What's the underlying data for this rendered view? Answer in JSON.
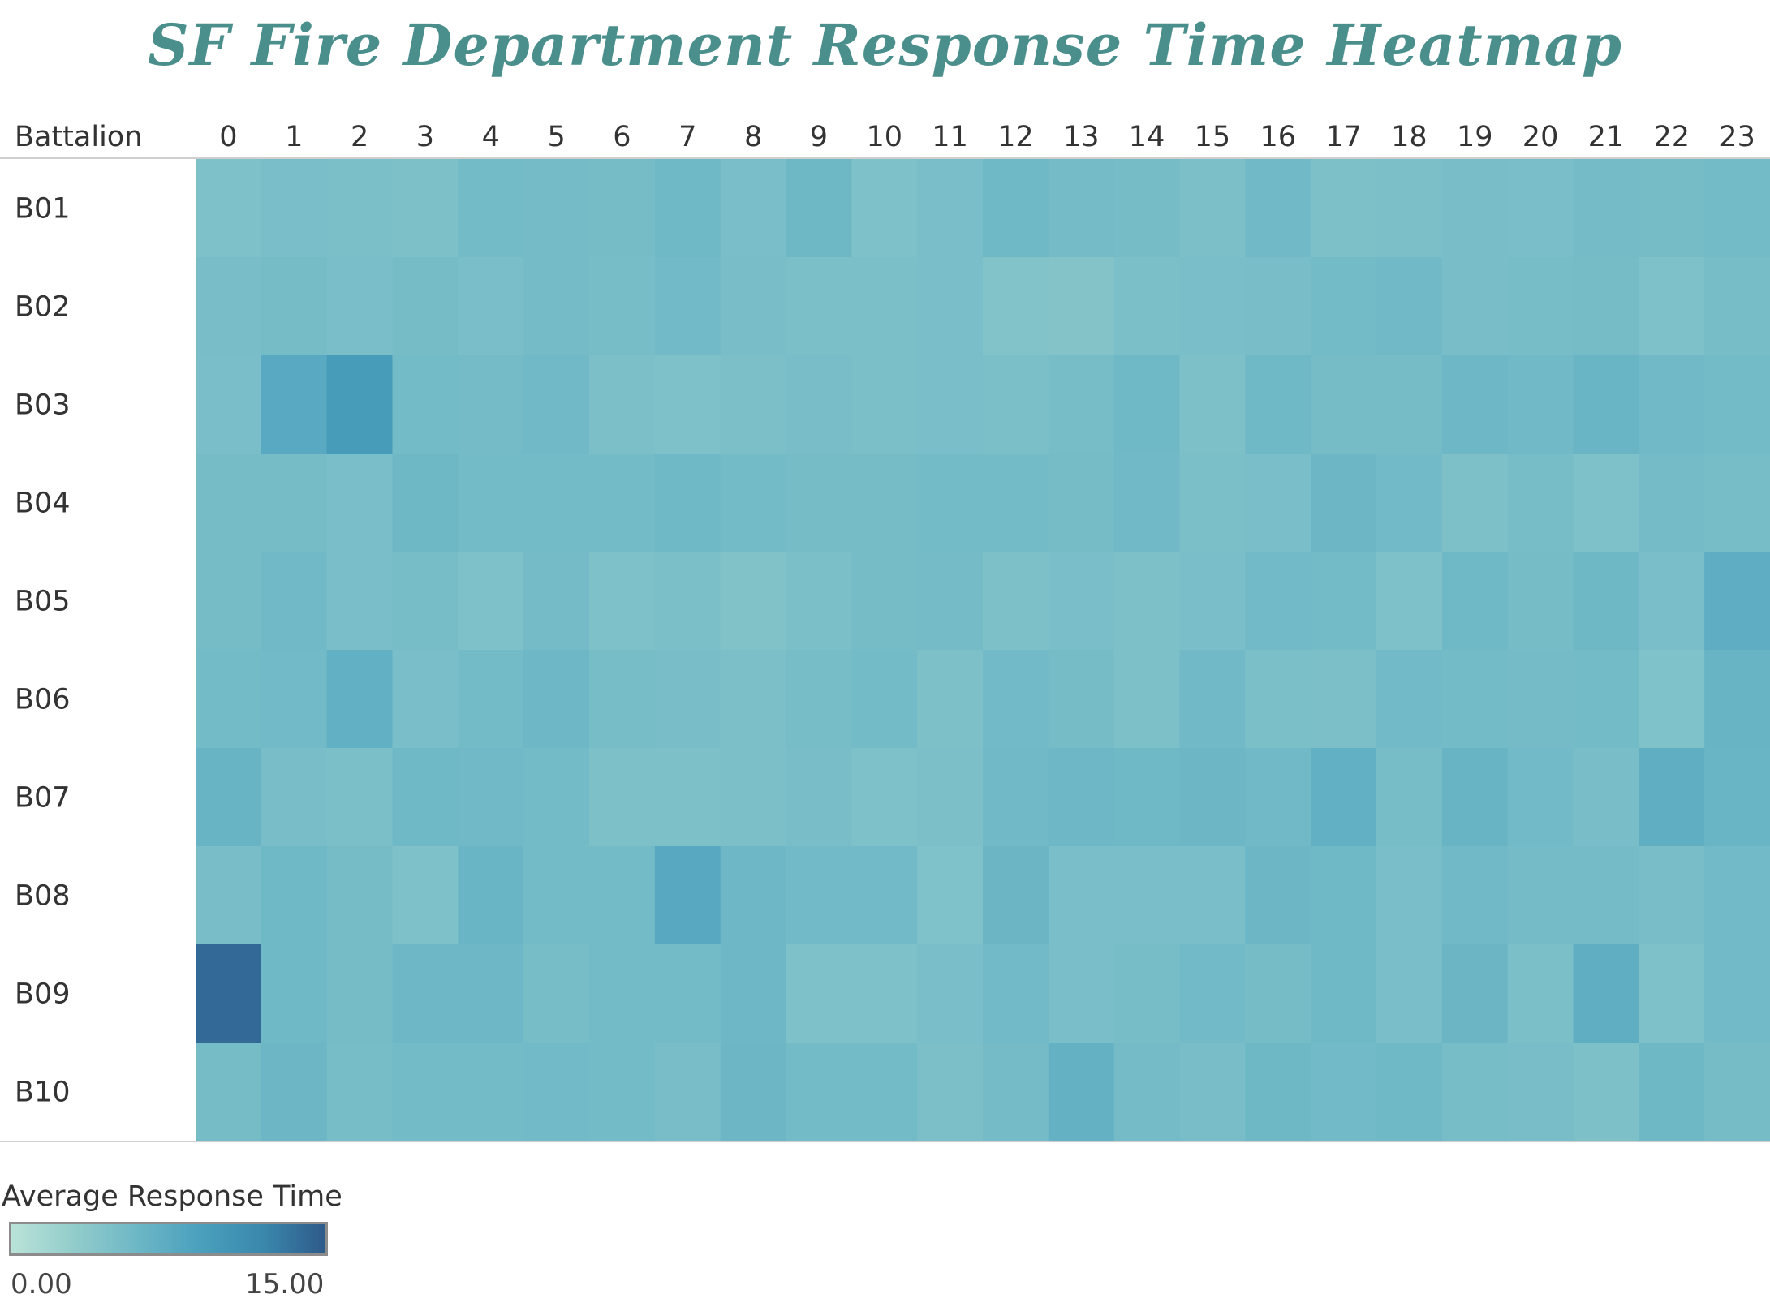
{
  "chart_data": {
    "type": "heatmap",
    "title": "SF Fire Department Response Time Heatmap",
    "row_header": "Battalion",
    "rows": [
      "B01",
      "B02",
      "B03",
      "B04",
      "B05",
      "B06",
      "B07",
      "B08",
      "B09",
      "B10"
    ],
    "columns": [
      "0",
      "1",
      "2",
      "3",
      "4",
      "5",
      "6",
      "7",
      "8",
      "9",
      "10",
      "11",
      "12",
      "13",
      "14",
      "15",
      "16",
      "17",
      "18",
      "19",
      "20",
      "21",
      "22",
      "23"
    ],
    "values": [
      [
        4.6,
        5.0,
        4.9,
        4.7,
        5.5,
        5.4,
        5.3,
        5.8,
        5.0,
        5.9,
        4.6,
        5.0,
        5.8,
        5.4,
        5.3,
        4.8,
        5.7,
        4.7,
        4.8,
        5.1,
        5.0,
        5.4,
        5.3,
        5.5
      ],
      [
        5.1,
        5.3,
        5.0,
        5.3,
        5.0,
        5.4,
        5.2,
        5.6,
        5.1,
        4.9,
        4.9,
        5.0,
        4.3,
        4.1,
        4.9,
        5.0,
        5.1,
        5.5,
        5.7,
        5.1,
        5.2,
        5.3,
        4.6,
        5.2
      ],
      [
        5.0,
        7.8,
        9.5,
        5.5,
        5.4,
        5.7,
        4.8,
        4.6,
        4.8,
        5.1,
        4.9,
        5.0,
        4.9,
        5.2,
        5.8,
        4.7,
        5.8,
        5.3,
        5.3,
        6.0,
        5.7,
        6.3,
        5.7,
        5.5
      ],
      [
        5.3,
        5.3,
        5.0,
        5.9,
        5.5,
        5.5,
        5.5,
        5.8,
        5.5,
        5.3,
        5.3,
        5.5,
        5.5,
        5.3,
        5.7,
        4.9,
        5.0,
        6.1,
        5.6,
        4.7,
        5.2,
        4.6,
        5.4,
        5.2
      ],
      [
        5.3,
        5.7,
        5.0,
        5.2,
        4.6,
        5.4,
        4.6,
        4.9,
        4.4,
        4.9,
        5.3,
        5.4,
        4.7,
        5.0,
        4.7,
        5.0,
        5.6,
        5.5,
        4.6,
        5.8,
        5.3,
        5.9,
        5.0,
        7.3
      ],
      [
        5.5,
        5.6,
        6.9,
        5.0,
        5.5,
        6.0,
        5.2,
        5.1,
        4.8,
        5.2,
        5.5,
        4.7,
        5.6,
        5.3,
        4.7,
        5.7,
        4.9,
        4.8,
        5.6,
        5.5,
        5.4,
        5.5,
        4.5,
        6.4
      ],
      [
        6.4,
        5.1,
        4.9,
        5.8,
        5.7,
        5.5,
        4.7,
        4.7,
        4.8,
        5.1,
        4.6,
        4.8,
        5.7,
        6.0,
        5.8,
        6.1,
        5.7,
        6.9,
        5.2,
        6.4,
        5.6,
        5.1,
        7.2,
        6.3
      ],
      [
        5.1,
        5.8,
        5.3,
        4.6,
        6.3,
        5.5,
        5.5,
        7.9,
        6.0,
        5.6,
        5.6,
        4.5,
        6.2,
        5.0,
        5.0,
        5.0,
        6.1,
        5.8,
        5.0,
        5.7,
        5.4,
        5.4,
        5.1,
        5.6
      ],
      [
        14.0,
        5.8,
        5.3,
        6.0,
        6.0,
        5.2,
        5.5,
        5.5,
        6.0,
        4.6,
        4.6,
        5.0,
        5.6,
        5.0,
        5.2,
        5.6,
        5.3,
        5.8,
        5.0,
        6.2,
        4.9,
        7.2,
        4.6,
        5.6
      ],
      [
        5.3,
        6.1,
        5.2,
        5.5,
        5.5,
        5.6,
        5.5,
        5.1,
        6.1,
        5.5,
        5.5,
        4.8,
        5.4,
        6.8,
        5.4,
        5.1,
        5.9,
        5.6,
        5.8,
        5.2,
        5.1,
        4.7,
        5.9,
        5.3
      ]
    ],
    "legend": {
      "title": "Average Response Time",
      "min_label": "0.00",
      "max_label": "15.00",
      "min": 0,
      "max": 15,
      "colors": [
        "#b9e3d8",
        "#92cccb",
        "#6db7c6",
        "#4aa0bd",
        "#3a88ad",
        "#2e5a8a"
      ]
    }
  }
}
